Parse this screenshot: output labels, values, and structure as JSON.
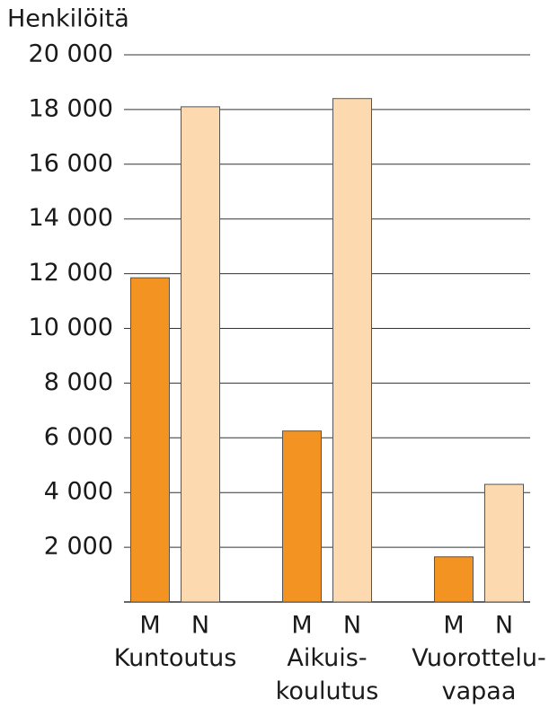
{
  "chart_data": {
    "type": "bar",
    "y_label": "Henkilöitä",
    "categories": [
      "Kuntoutus",
      "Aikuis-\nkoulutus",
      "Vuorottelu-\nvapaa"
    ],
    "series": [
      {
        "name": "M",
        "color": "#f39322",
        "values": [
          11850,
          6250,
          1650
        ]
      },
      {
        "name": "N",
        "color": "#fdd9b0",
        "values": [
          18100,
          18400,
          4300
        ]
      }
    ],
    "ylim": [
      0,
      20000
    ],
    "yticks": [
      {
        "value": 2000,
        "label": "2 000"
      },
      {
        "value": 4000,
        "label": "4 000"
      },
      {
        "value": 6000,
        "label": "6 000"
      },
      {
        "value": 8000,
        "label": "8 000"
      },
      {
        "value": 10000,
        "label": "10 000"
      },
      {
        "value": 12000,
        "label": "12 000"
      },
      {
        "value": 14000,
        "label": "14 000"
      },
      {
        "value": 16000,
        "label": "16 000"
      },
      {
        "value": 18000,
        "label": "18 000"
      },
      {
        "value": 20000,
        "label": "20 000"
      }
    ],
    "grid": true
  }
}
